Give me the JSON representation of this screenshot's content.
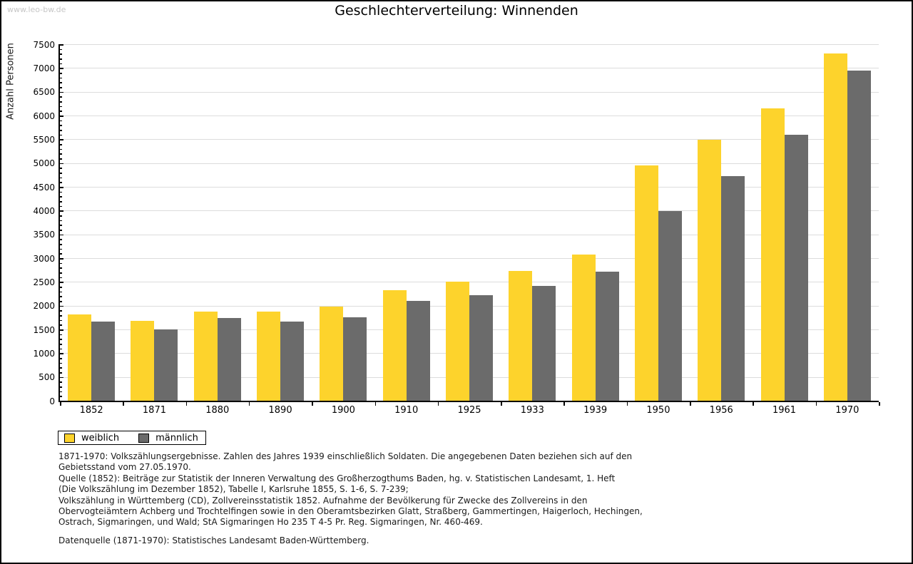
{
  "watermark": "www.leo-bw.de",
  "chart_data": {
    "type": "bar",
    "title": "Geschlechterverteilung: Winnenden",
    "xlabel": "",
    "ylabel": "Anzahl Personen",
    "categories": [
      "1852",
      "1871",
      "1880",
      "1890",
      "1900",
      "1910",
      "1925",
      "1933",
      "1939",
      "1950",
      "1956",
      "1961",
      "1970"
    ],
    "series": [
      {
        "name": "weiblich",
        "color": "#fdd32c",
        "values": [
          1820,
          1680,
          1870,
          1870,
          1980,
          2320,
          2510,
          2730,
          3080,
          4950,
          5490,
          6150,
          7300
        ]
      },
      {
        "name": "männlich",
        "color": "#6b6b6b",
        "values": [
          1670,
          1500,
          1740,
          1660,
          1760,
          2100,
          2220,
          2410,
          2710,
          3990,
          4730,
          5600,
          6950
        ]
      }
    ],
    "ylim": [
      0,
      7500
    ],
    "ytick_step": 500,
    "yminor_step": 100,
    "grid": "horizontal",
    "gridline_color": "#dcdcdc",
    "legend_position": "bottom-left"
  },
  "footer": {
    "para1": "1871-1970: Volkszählungsergebnisse. Zahlen des Jahres 1939 einschließlich Soldaten. Die angegebenen Daten beziehen sich auf den\nGebietsstand vom 27.05.1970.\nQuelle (1852): Beiträge zur Statistik der Inneren Verwaltung des Großherzogthums Baden, hg. v. Statistischen Landesamt, 1. Heft\n(Die Volkszählung im Dezember 1852), Tabelle I, Karlsruhe 1855, S. 1-6, S. 7-239;\nVolkszählung in Württemberg (CD), Zollvereinsstatistik 1852. Aufnahme der Bevölkerung für Zwecke des Zollvereins in den\nObervogteiämtern Achberg und Trochtelfingen sowie in den Oberamtsbezirken Glatt, Straßberg, Gammertingen, Haigerloch, Hechingen,\nOstrach, Sigmaringen, und Wald; StA Sigmaringen Ho 235 T 4-5 Pr. Reg. Sigmaringen, Nr. 460-469.",
    "para2": "Datenquelle (1871-1970): Statistisches Landesamt Baden-Württemberg."
  }
}
